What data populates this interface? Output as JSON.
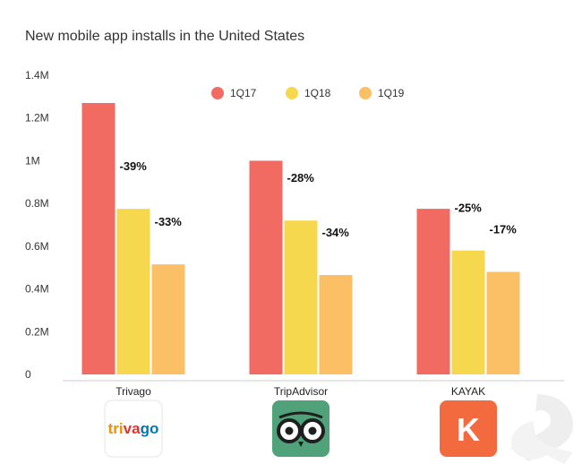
{
  "chart_data": {
    "type": "bar",
    "title": "New mobile app installs in the United States",
    "xlabel": "",
    "ylabel": "",
    "ylim": [
      0,
      1400000
    ],
    "yticks": [
      {
        "value": 0,
        "label": "0"
      },
      {
        "value": 200000,
        "label": "0.2M"
      },
      {
        "value": 400000,
        "label": "0.4M"
      },
      {
        "value": 600000,
        "label": "0.6M"
      },
      {
        "value": 800000,
        "label": "0.8M"
      },
      {
        "value": 1000000,
        "label": "1M"
      },
      {
        "value": 1200000,
        "label": "1.2M"
      },
      {
        "value": 1400000,
        "label": "1.4M"
      }
    ],
    "categories": [
      "Trivago",
      "TripAdvisor",
      "KAYAK"
    ],
    "series": [
      {
        "name": "1Q17",
        "color": "#f26b63",
        "values": [
          1270000,
          1000000,
          775000
        ],
        "labels": [
          "",
          "",
          ""
        ]
      },
      {
        "name": "1Q18",
        "color": "#f6d84f",
        "values": [
          775000,
          720000,
          580000
        ],
        "labels": [
          "-39%",
          "-28%",
          "-25%"
        ]
      },
      {
        "name": "1Q19",
        "color": "#fbbf66",
        "values": [
          515000,
          465000,
          480000
        ],
        "labels": [
          "-33%",
          "-34%",
          "-17%"
        ]
      }
    ],
    "legend": "top-center",
    "grid": false
  },
  "logos": [
    {
      "name": "trivago",
      "text": "trivago",
      "icon": "trivago-logo"
    },
    {
      "name": "tripadvisor",
      "text": "",
      "icon": "owl-eyes-logo"
    },
    {
      "name": "kayak",
      "text": "K",
      "icon": "kayak-k-logo"
    }
  ]
}
